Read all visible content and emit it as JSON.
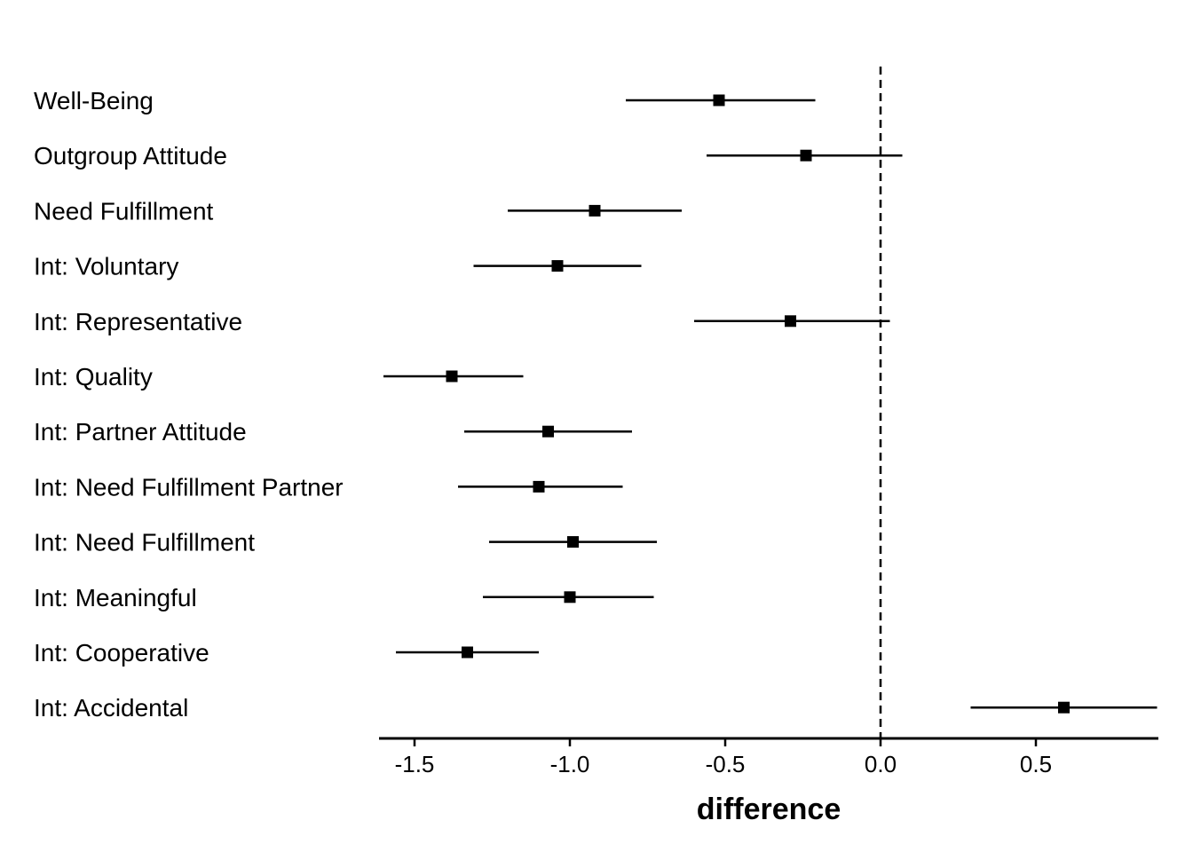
{
  "chart_data": {
    "type": "forest",
    "title": "",
    "xlabel": "difference",
    "ylabel": "",
    "xlim": [
      -1.6,
      0.89
    ],
    "xticks": [
      -1.5,
      -1.0,
      -0.5,
      0.0,
      0.5
    ],
    "xtick_labels": [
      "-1.5",
      "-1.0",
      "-0.5",
      "0.0",
      "0.5"
    ],
    "reference_line": 0.0,
    "grid": false,
    "legend": "none",
    "rows": [
      {
        "label": "Well-Being",
        "estimate": -0.52,
        "lower": -0.82,
        "upper": -0.21
      },
      {
        "label": "Outgroup Attitude",
        "estimate": -0.24,
        "lower": -0.56,
        "upper": 0.07
      },
      {
        "label": "Need Fulfillment",
        "estimate": -0.92,
        "lower": -1.2,
        "upper": -0.64
      },
      {
        "label": "Int: Voluntary",
        "estimate": -1.04,
        "lower": -1.31,
        "upper": -0.77
      },
      {
        "label": "Int: Representative",
        "estimate": -0.29,
        "lower": -0.6,
        "upper": 0.03
      },
      {
        "label": "Int: Quality",
        "estimate": -1.38,
        "lower": -1.6,
        "upper": -1.15
      },
      {
        "label": "Int: Partner Attitude",
        "estimate": -1.07,
        "lower": -1.34,
        "upper": -0.8
      },
      {
        "label": "Int: Need Fulfillment Partner",
        "estimate": -1.1,
        "lower": -1.36,
        "upper": -0.83
      },
      {
        "label": "Int: Need Fulfillment",
        "estimate": -0.99,
        "lower": -1.26,
        "upper": -0.72
      },
      {
        "label": "Int: Meaningful",
        "estimate": -1.0,
        "lower": -1.28,
        "upper": -0.73
      },
      {
        "label": "Int: Cooperative",
        "estimate": -1.33,
        "lower": -1.56,
        "upper": -1.1
      },
      {
        "label": "Int: Accidental",
        "estimate": 0.59,
        "lower": 0.29,
        "upper": 0.89
      }
    ]
  }
}
